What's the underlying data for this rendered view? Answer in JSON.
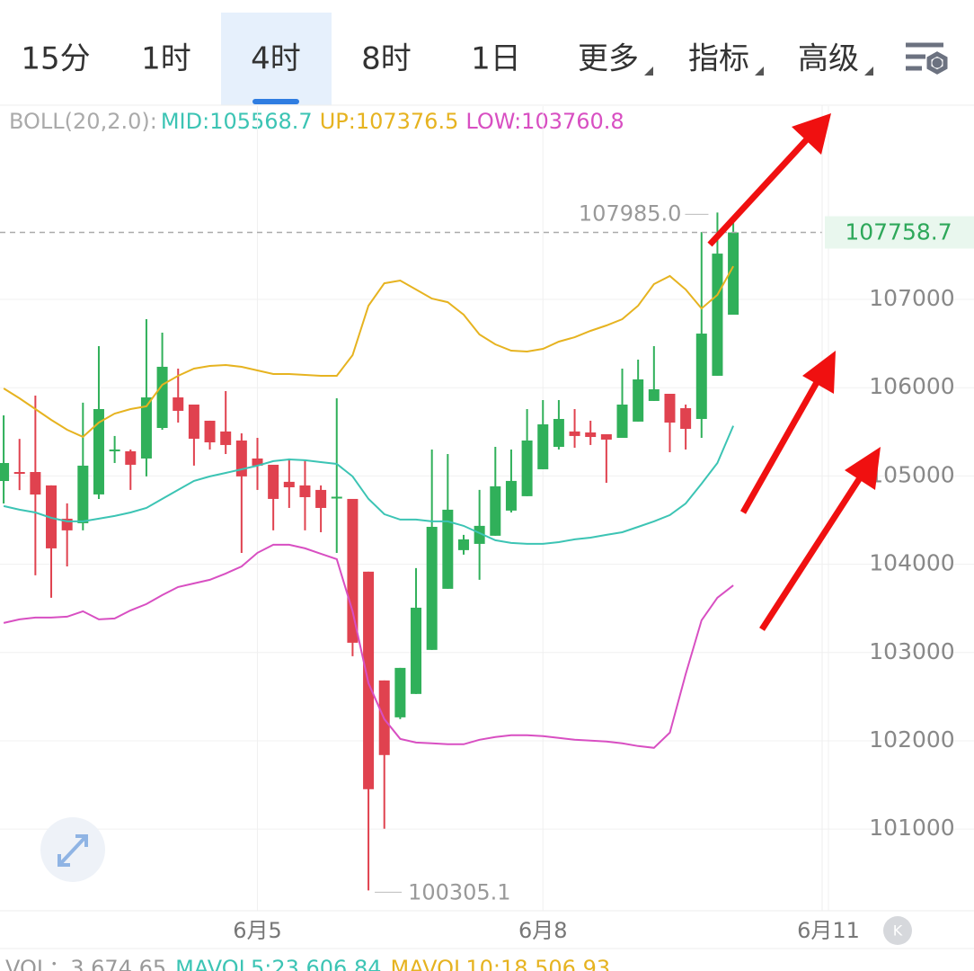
{
  "tabs": [
    "15分",
    "1时",
    "4时",
    "8时",
    "1日",
    "更多",
    "指标",
    "高级"
  ],
  "indicator_label": "BOLL(20,2.0):",
  "volume_legend": [
    "VOL：3,674.65",
    "MAVOL5:23,606.84",
    "MAVOL10:18,506.93"
  ],
  "chart_data": {
    "type": "candlestick",
    "x": [
      0,
      1,
      2,
      3,
      4,
      5,
      6,
      7,
      8,
      9,
      10,
      11,
      12,
      13,
      14,
      15,
      16,
      17,
      18,
      19,
      20,
      21,
      22,
      23,
      24,
      25,
      26,
      27,
      28,
      29,
      30,
      31,
      32,
      33,
      34,
      35,
      36,
      37,
      38,
      39,
      40,
      41,
      42,
      43,
      44,
      45,
      46
    ],
    "open": [
      104943,
      105045,
      105045,
      104893,
      104516,
      104465,
      104791,
      105290,
      105280,
      105198,
      105544,
      105890,
      105809,
      105626,
      105504,
      105402,
      105198,
      105127,
      104934,
      104893,
      104842,
      104750,
      104740,
      103916,
      102684,
      102266,
      102531,
      103030,
      103722,
      104160,
      104231,
      104323,
      104608,
      104771,
      105076,
      105330,
      105504,
      105493,
      105473,
      105432,
      105616,
      105850,
      105931,
      105768,
      105646,
      106135,
      106827
    ],
    "high": [
      105686,
      105420,
      105911,
      104893,
      104690,
      105830,
      106471,
      105453,
      105300,
      106776,
      106623,
      106216,
      105809,
      105626,
      105962,
      105483,
      105432,
      105127,
      105198,
      105178,
      104893,
      105880,
      104740,
      103916,
      102684,
      102826,
      103956,
      105300,
      105249,
      104333,
      104842,
      105330,
      105300,
      105758,
      105860,
      105860,
      105758,
      105626,
      105473,
      106216,
      106318,
      106471,
      105931,
      105809,
      107763,
      107985,
      107946
    ],
    "low": [
      104688,
      104840,
      103875,
      103620,
      103976,
      104384,
      104740,
      105147,
      104842,
      104995,
      105524,
      105605,
      105117,
      105300,
      105249,
      104129,
      104842,
      104384,
      104638,
      104384,
      104363,
      104129,
      102959,
      100305.1,
      101004,
      102246,
      102531,
      103030,
      103722,
      104109,
      103824,
      104323,
      104587,
      104771,
      105076,
      105300,
      105320,
      105351,
      104923,
      105432,
      105616,
      105850,
      105269,
      105300,
      105432,
      106135,
      106827
    ],
    "close": [
      105147,
      105035,
      104790,
      104180,
      104384,
      105117,
      105758,
      105300,
      105127,
      105890,
      106237,
      105738,
      105422,
      105381,
      105351,
      104995,
      105117,
      104740,
      104872,
      104760,
      104638,
      104765,
      103111,
      101452,
      101839,
      102826,
      103508,
      104424,
      104618,
      104282,
      104435,
      104883,
      104944,
      105402,
      105585,
      105646,
      105453,
      105442,
      105412,
      105809,
      106094,
      105982,
      105605,
      105534,
      106613,
      107519,
      107758.7
    ],
    "up_color": "#30b05a",
    "down_color": "#e0424f",
    "series": [
      {
        "name": "MID:",
        "color": "#3cc4b4",
        "values": [
          104659,
          104618,
          104587,
          104526,
          104486,
          104486,
          104516,
          104547,
          104587,
          104638,
          104740,
          104842,
          104944,
          104995,
          105035,
          105076,
          105117,
          105168,
          105188,
          105178,
          105157,
          105137,
          104995,
          104740,
          104567,
          104506,
          104506,
          104486,
          104486,
          104435,
          104353,
          104272,
          104241,
          104231,
          104231,
          104251,
          104282,
          104302,
          104333,
          104363,
          104424,
          104486,
          104557,
          104689,
          104913,
          105147,
          105568.7
        ]
      },
      {
        "name": "UP:",
        "color": "#e6b320",
        "values": [
          105992,
          105880,
          105758,
          105636,
          105524,
          105443,
          105605,
          105707,
          105758,
          105789,
          106033,
          106135,
          106216,
          106247,
          106257,
          106237,
          106196,
          106155,
          106155,
          106145,
          106135,
          106135,
          106369,
          106929,
          107183,
          107214,
          107112,
          107010,
          106969,
          106827,
          106603,
          106491,
          106420,
          106410,
          106440,
          106522,
          106572,
          106644,
          106705,
          106776,
          106929,
          107173,
          107265,
          107112,
          106898,
          107051,
          107376.5
        ]
      },
      {
        "name": "LOW:",
        "color": "#d84fc2",
        "values": [
          103335,
          103376,
          103396,
          103396,
          103406,
          103467,
          103376,
          103386,
          103478,
          103549,
          103651,
          103742,
          103783,
          103824,
          103895,
          103976,
          104129,
          104221,
          104221,
          104180,
          104119,
          104058,
          103467,
          102653,
          102246,
          102022,
          101981,
          101971,
          101961,
          101961,
          102012,
          102043,
          102063,
          102063,
          102053,
          102032,
          102012,
          102002,
          101992,
          101971,
          101941,
          101920,
          102093,
          102755,
          103366,
          103621,
          103760.8
        ]
      }
    ],
    "high_label": "107985.0",
    "low_label": "100305.1",
    "xlim": [
      -0.23,
      52
    ],
    "xticks": [
      {
        "value": 16,
        "label": "6月5"
      },
      {
        "value": 34,
        "label": "6月8"
      },
      {
        "value": 52,
        "label": "6月11"
      }
    ],
    "ylim": [
      100075,
      109190
    ],
    "yticks": [
      101000,
      102000,
      103000,
      104000,
      105000,
      106000,
      107000
    ],
    "grid": true
  }
}
